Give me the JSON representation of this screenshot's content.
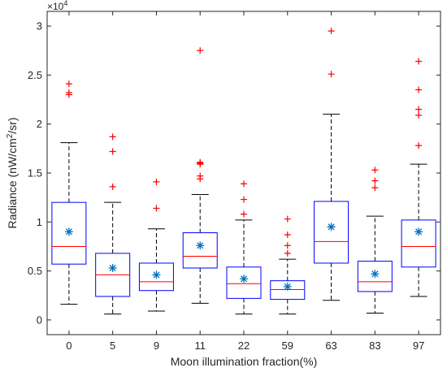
{
  "chart_data": {
    "type": "box",
    "xlabel": "Moon illumination fraction(%)",
    "ylabel_main": "Radiance (nW/cm",
    "ylabel_sup": "2",
    "ylabel_tail": "/sr)",
    "y_exponent_base": "×10",
    "y_exponent_power": "4",
    "ylim": [
      -0.15,
      3.15
    ],
    "yticks": [
      0,
      0.5,
      1,
      1.5,
      2,
      2.5,
      3
    ],
    "ytick_labels": [
      "0",
      "0.5",
      "1",
      "1.5",
      "2",
      "2.5",
      "3"
    ],
    "grid": false,
    "colors": {
      "box": "#0000ff",
      "median": "#ff0000",
      "whisker": "#000000",
      "outlier": "#ff0000",
      "mean": "#0072bd",
      "axis": "#262626"
    },
    "categories": [
      "0",
      "5",
      "9",
      "11",
      "22",
      "59",
      "63",
      "83",
      "97"
    ],
    "boxes": [
      {
        "category": "0",
        "whisker_low": 0.16,
        "q1": 0.57,
        "median": 0.75,
        "q3": 1.2,
        "whisker_high": 1.81,
        "mean": 0.9,
        "outliers": [
          2.3,
          2.32,
          2.41
        ]
      },
      {
        "category": "5",
        "whisker_low": 0.06,
        "q1": 0.24,
        "median": 0.46,
        "q3": 0.68,
        "whisker_high": 1.2,
        "mean": 0.53,
        "outliers": [
          1.36,
          1.72,
          1.87
        ]
      },
      {
        "category": "9",
        "whisker_low": 0.09,
        "q1": 0.3,
        "median": 0.39,
        "q3": 0.58,
        "whisker_high": 0.93,
        "mean": 0.46,
        "outliers": [
          1.14,
          1.41
        ]
      },
      {
        "category": "11",
        "whisker_low": 0.17,
        "q1": 0.53,
        "median": 0.65,
        "q3": 0.89,
        "whisker_high": 1.28,
        "mean": 0.76,
        "outliers": [
          1.44,
          1.47,
          1.59,
          1.6,
          1.61,
          2.75
        ]
      },
      {
        "category": "22",
        "whisker_low": 0.06,
        "q1": 0.22,
        "median": 0.37,
        "q3": 0.54,
        "whisker_high": 1.02,
        "mean": 0.42,
        "outliers": [
          1.08,
          1.23,
          1.39
        ]
      },
      {
        "category": "59",
        "whisker_low": 0.06,
        "q1": 0.21,
        "median": 0.31,
        "q3": 0.4,
        "whisker_high": 0.62,
        "mean": 0.34,
        "outliers": [
          0.68,
          0.76,
          0.87,
          1.03
        ]
      },
      {
        "category": "63",
        "whisker_low": 0.2,
        "q1": 0.58,
        "median": 0.8,
        "q3": 1.21,
        "whisker_high": 2.1,
        "mean": 0.95,
        "outliers": [
          2.51,
          2.95
        ]
      },
      {
        "category": "83",
        "whisker_low": 0.07,
        "q1": 0.29,
        "median": 0.39,
        "q3": 0.6,
        "whisker_high": 1.06,
        "mean": 0.47,
        "outliers": [
          1.35,
          1.42,
          1.53
        ]
      },
      {
        "category": "97",
        "whisker_low": 0.24,
        "q1": 0.54,
        "median": 0.75,
        "q3": 1.02,
        "whisker_high": 1.59,
        "mean": 0.9,
        "outliers": [
          1.78,
          2.09,
          2.15,
          2.35,
          2.64
        ]
      }
    ]
  }
}
